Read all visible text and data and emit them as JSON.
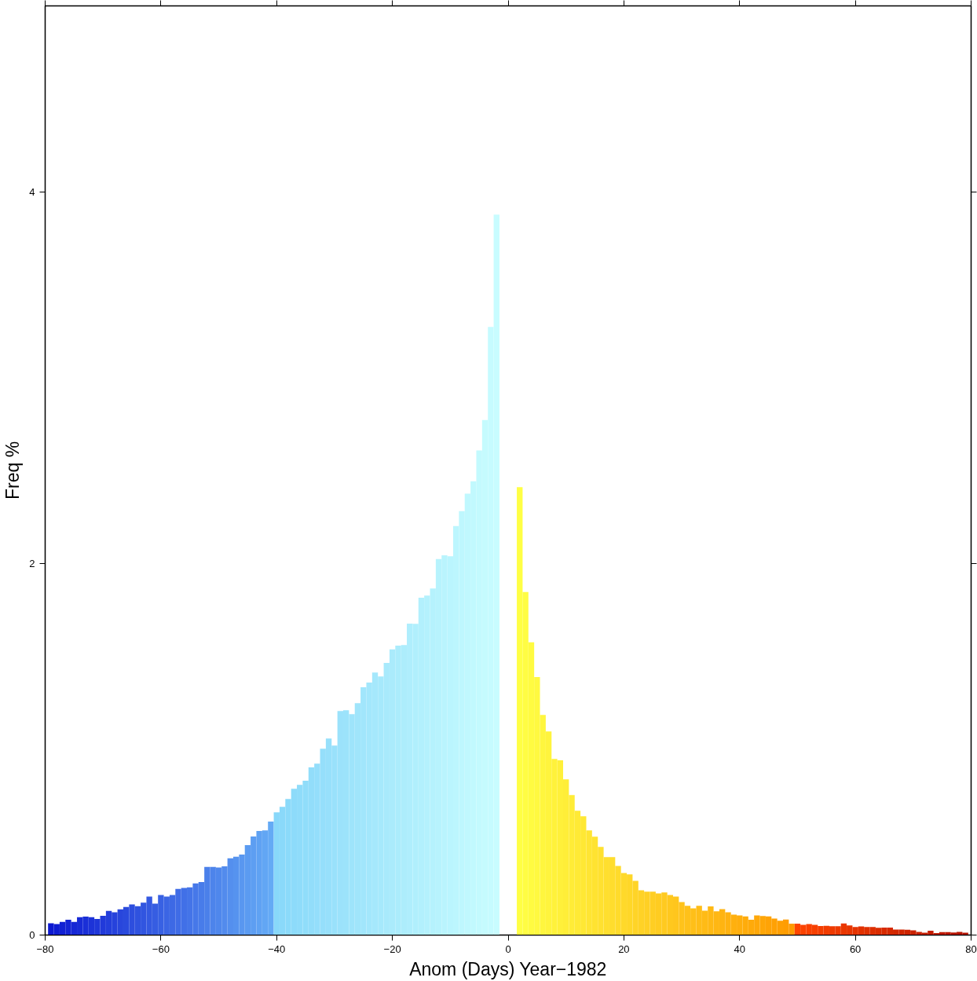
{
  "chart_data": {
    "type": "histogram",
    "xlabel": "Anom (Days) Year−1982",
    "ylabel": "Freq %",
    "xlim": [
      -80,
      80
    ],
    "ylim": [
      0,
      5
    ],
    "xticks": [
      {
        "value": -80,
        "label": "−80"
      },
      {
        "value": -60,
        "label": "−60"
      },
      {
        "value": -40,
        "label": "−40"
      },
      {
        "value": -20,
        "label": "−20"
      },
      0,
      20,
      40,
      60,
      80
    ],
    "yticks": [
      0,
      2,
      4
    ],
    "grid": false,
    "bins": [
      -79.5,
      -78.5,
      -77.5,
      -76.5,
      -75.5,
      -74.5,
      -73.5,
      -72.5,
      -71.5,
      -70.5,
      -69.5,
      -68.5,
      -67.5,
      -66.5,
      -65.5,
      -64.5,
      -63.5,
      -62.5,
      -61.5,
      -60.5,
      -59.5,
      -58.5,
      -57.5,
      -56.5,
      -55.5,
      -54.5,
      -53.5,
      -52.5,
      -51.5,
      -50.5,
      -49.5,
      -48.5,
      -47.5,
      -46.5,
      -45.5,
      -44.5,
      -43.5,
      -42.5,
      -41.5,
      -40.5,
      -39.5,
      -38.5,
      -37.5,
      -36.5,
      -35.5,
      -34.5,
      -33.5,
      -32.5,
      -31.5,
      -30.5,
      -29.5,
      -28.5,
      -27.5,
      -26.5,
      -25.5,
      -24.5,
      -23.5,
      -22.5,
      -21.5,
      -20.5,
      -19.5,
      -18.5,
      -17.5,
      -16.5,
      -15.5,
      -14.5,
      -13.5,
      -12.5,
      -11.5,
      -10.5,
      -9.5,
      -8.5,
      -7.5,
      -6.5,
      -5.5,
      -4.5,
      -3.5,
      -2.5,
      -1.5,
      -0.5,
      0.5,
      1.5,
      2.5,
      3.5,
      4.5,
      5.5,
      6.5,
      7.5,
      8.5,
      9.5,
      10.5,
      11.5,
      12.5,
      13.5,
      14.5,
      15.5,
      16.5,
      17.5,
      18.5,
      19.5,
      20.5,
      21.5,
      22.5,
      23.5,
      24.5,
      25.5,
      26.5,
      27.5,
      28.5,
      29.5,
      30.5,
      31.5,
      32.5,
      33.5,
      34.5,
      35.5,
      36.5,
      37.5,
      38.5,
      39.5,
      40.5,
      41.5,
      42.5,
      43.5,
      44.5,
      45.5,
      46.5,
      47.5,
      48.5,
      49.5,
      50.5,
      51.5,
      52.5,
      53.5,
      54.5,
      55.5,
      56.5,
      57.5,
      58.5,
      59.5,
      60.5,
      61.5,
      62.5,
      63.5,
      64.5,
      65.5,
      66.5,
      67.5,
      68.5,
      69.5,
      70.5,
      71.5,
      72.5,
      73.5,
      74.5,
      75.5,
      76.5,
      77.5,
      78.5,
      79.5
    ],
    "values": [
      0.063,
      0.059,
      0.071,
      0.082,
      0.071,
      0.096,
      0.099,
      0.096,
      0.087,
      0.104,
      0.13,
      0.123,
      0.138,
      0.151,
      0.165,
      0.155,
      0.174,
      0.207,
      0.169,
      0.216,
      0.207,
      0.216,
      0.248,
      0.254,
      0.257,
      0.278,
      0.285,
      0.367,
      0.367,
      0.363,
      0.37,
      0.413,
      0.422,
      0.433,
      0.484,
      0.53,
      0.56,
      0.563,
      0.611,
      0.66,
      0.69,
      0.732,
      0.787,
      0.808,
      0.831,
      0.902,
      0.922,
      1.003,
      1.058,
      1.02,
      1.206,
      1.21,
      1.189,
      1.248,
      1.333,
      1.359,
      1.413,
      1.392,
      1.464,
      1.537,
      1.558,
      1.561,
      1.676,
      1.675,
      1.815,
      1.827,
      1.865,
      2.023,
      2.044,
      2.038,
      2.201,
      2.281,
      2.375,
      2.442,
      2.608,
      2.772,
      3.272,
      3.877,
      0,
      0,
      0,
      2.41,
      1.846,
      1.575,
      1.388,
      1.185,
      1.096,
      0.948,
      0.94,
      0.838,
      0.753,
      0.669,
      0.639,
      0.563,
      0.529,
      0.474,
      0.419,
      0.419,
      0.372,
      0.334,
      0.326,
      0.292,
      0.241,
      0.233,
      0.233,
      0.224,
      0.229,
      0.216,
      0.207,
      0.178,
      0.157,
      0.144,
      0.157,
      0.131,
      0.154,
      0.128,
      0.14,
      0.123,
      0.11,
      0.106,
      0.1,
      0.082,
      0.106,
      0.103,
      0.1,
      0.089,
      0.077,
      0.083,
      0.061,
      0.061,
      0.055,
      0.059,
      0.055,
      0.049,
      0.05,
      0.048,
      0.048,
      0.062,
      0.052,
      0.043,
      0.046,
      0.043,
      0.043,
      0.039,
      0.04,
      0.04,
      0.03,
      0.03,
      0.029,
      0.025,
      0.017,
      0.013,
      0.023,
      0.011,
      0.016,
      0.016,
      0.014,
      0.017,
      0.013
    ],
    "colors": [
      "#0c18d1",
      "#0e1cd2",
      "#1120d3",
      "#1323d4",
      "#1627d5",
      "#182bd6",
      "#1a2fd7",
      "#1d33d8",
      "#1f37d9",
      "#213ada",
      "#233edb",
      "#2642dc",
      "#2846dc",
      "#2a4add",
      "#2d4ede",
      "#2f52df",
      "#3155e0",
      "#3459e1",
      "#365de2",
      "#3861e3",
      "#3b65e4",
      "#3d69e5",
      "#3f6ce6",
      "#4170e7",
      "#4474e8",
      "#4678e9",
      "#487cea",
      "#4b80ea",
      "#4d84eb",
      "#4f87ec",
      "#528bed",
      "#548fee",
      "#5693ef",
      "#5997f0",
      "#5b9bf1",
      "#5d9ef2",
      "#5fa2f3",
      "#62a6f4",
      "#64aaf5",
      "#88d8fa",
      "#8ad9fa",
      "#8bdafa",
      "#8ddbfa",
      "#8fdcfa",
      "#90ddfa",
      "#92ddfa",
      "#94defb",
      "#95dffb",
      "#97e0fb",
      "#99e1fb",
      "#9be2fb",
      "#9ce3fb",
      "#9ee4fb",
      "#a0e5fb",
      "#a1e6fc",
      "#a3e7fc",
      "#a5e8fc",
      "#a6e9fc",
      "#a8eafc",
      "#aaebfc",
      "#abecfc",
      "#adedfc",
      "#afeefd",
      "#b0effd",
      "#b2f0fd",
      "#b4f1fd",
      "#b5f2fd",
      "#b7f3fd",
      "#b9f4fd",
      "#baf5fe",
      "#bcf6fe",
      "#bef7fe",
      "#c0f8fe",
      "#c1f9fe",
      "#c3fafe",
      "#c5fbfe",
      "#c6fbff",
      "#c8fcff",
      "#ffffff",
      "#ffffff",
      "#ffffff",
      "#ffff44",
      "#fffd43",
      "#fffb41",
      "#fff940",
      "#fff63e",
      "#fff43d",
      "#fff23b",
      "#fff03a",
      "#ffee38",
      "#ffec37",
      "#ffea35",
      "#ffe834",
      "#ffe533",
      "#ffe331",
      "#ffe130",
      "#ffdf2e",
      "#ffdd2d",
      "#ffdb2b",
      "#ffd92a",
      "#ffd728",
      "#ffd427",
      "#ffd226",
      "#ffd024",
      "#ffce23",
      "#ffcc21",
      "#ffca20",
      "#ffc81e",
      "#ffc61d",
      "#ffc31b",
      "#ffc11a",
      "#ffbf18",
      "#ffbd17",
      "#ffbb16",
      "#ffb914",
      "#ffb713",
      "#ffb411",
      "#ffb210",
      "#ffb00e",
      "#ffae0d",
      "#ffac0b",
      "#ffaa0a",
      "#ffa809",
      "#ffa607",
      "#ffa306",
      "#ffa104",
      "#ff9f03",
      "#ff9d01",
      "#ff9b00",
      "#ff4500",
      "#fc4300",
      "#fa4100",
      "#f74000",
      "#f43e00",
      "#f23c00",
      "#ef3a00",
      "#ed3900",
      "#ea3700",
      "#e73500",
      "#e53300",
      "#e23100",
      "#df3000",
      "#dd2e00",
      "#da2c00",
      "#d82a00",
      "#d52900",
      "#d22700",
      "#d02500",
      "#cd2300",
      "#ca2200",
      "#c82000",
      "#c51e00",
      "#c31c00",
      "#c01b00",
      "#bd1900",
      "#bb1700",
      "#b81500",
      "#b51400",
      "#b31200"
    ]
  }
}
